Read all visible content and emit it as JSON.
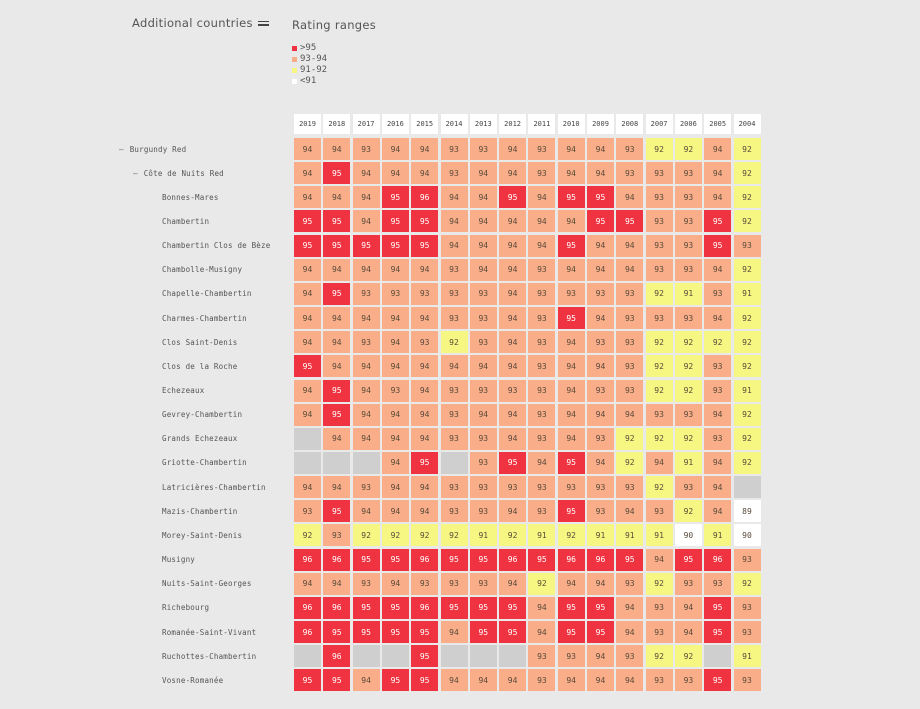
{
  "header": {
    "additional_countries": "Additional countries",
    "rating_ranges_title": "Rating ranges"
  },
  "legend": [
    {
      "label": ">95",
      "color": "#ef3340"
    },
    {
      "label": "93-94",
      "color": "#f9ae89"
    },
    {
      "label": "91-92",
      "color": "#f6f783"
    },
    {
      "label": "<91",
      "color": "#ffffff"
    }
  ],
  "chart_data": {
    "type": "heatmap",
    "columns": [
      "2019",
      "2018",
      "2017",
      "2016",
      "2015",
      "2014",
      "2013",
      "2012",
      "2011",
      "2010",
      "2009",
      "2008",
      "2007",
      "2006",
      "2005",
      "2004"
    ],
    "rows": [
      {
        "label": "Burgundy Red",
        "level": 0,
        "values": [
          94,
          94,
          93,
          94,
          94,
          93,
          93,
          94,
          93,
          94,
          94,
          93,
          92,
          92,
          94,
          92
        ]
      },
      {
        "label": "Côte de Nuits Red",
        "level": 1,
        "values": [
          94,
          95,
          94,
          94,
          94,
          93,
          94,
          94,
          93,
          94,
          94,
          93,
          93,
          93,
          94,
          92
        ]
      },
      {
        "label": "Bonnes-Mares",
        "level": 2,
        "values": [
          94,
          94,
          94,
          95,
          96,
          94,
          94,
          95,
          94,
          95,
          95,
          94,
          93,
          93,
          94,
          92
        ]
      },
      {
        "label": "Chambertin",
        "level": 2,
        "values": [
          95,
          95,
          94,
          95,
          95,
          94,
          94,
          94,
          94,
          94,
          95,
          95,
          93,
          93,
          95,
          92
        ]
      },
      {
        "label": "Chambertin Clos de Bèze",
        "level": 2,
        "values": [
          95,
          95,
          95,
          95,
          95,
          94,
          94,
          94,
          94,
          95,
          94,
          94,
          93,
          93,
          95,
          93
        ]
      },
      {
        "label": "Chambolle-Musigny",
        "level": 2,
        "values": [
          94,
          94,
          94,
          94,
          94,
          93,
          94,
          94,
          93,
          94,
          94,
          94,
          93,
          93,
          94,
          92
        ]
      },
      {
        "label": "Chapelle-Chambertin",
        "level": 2,
        "values": [
          94,
          95,
          93,
          93,
          93,
          93,
          93,
          94,
          93,
          93,
          93,
          93,
          92,
          91,
          93,
          91
        ]
      },
      {
        "label": "Charmes-Chambertin",
        "level": 2,
        "values": [
          94,
          94,
          94,
          94,
          94,
          93,
          93,
          94,
          93,
          95,
          94,
          93,
          93,
          93,
          94,
          92
        ]
      },
      {
        "label": "Clos Saint-Denis",
        "level": 2,
        "values": [
          94,
          94,
          93,
          94,
          93,
          92,
          93,
          94,
          93,
          94,
          93,
          93,
          92,
          92,
          92,
          92
        ]
      },
      {
        "label": "Clos de la Roche",
        "level": 2,
        "values": [
          95,
          94,
          94,
          94,
          94,
          94,
          94,
          94,
          93,
          94,
          94,
          93,
          92,
          92,
          93,
          92
        ]
      },
      {
        "label": "Echezeaux",
        "level": 2,
        "values": [
          94,
          95,
          94,
          93,
          94,
          93,
          93,
          93,
          93,
          94,
          93,
          93,
          92,
          92,
          93,
          91
        ]
      },
      {
        "label": "Gevrey-Chambertin",
        "level": 2,
        "values": [
          94,
          95,
          94,
          94,
          94,
          93,
          94,
          94,
          93,
          94,
          94,
          94,
          93,
          93,
          94,
          92
        ]
      },
      {
        "label": "Grands Echezeaux",
        "level": 2,
        "values": [
          null,
          94,
          94,
          94,
          94,
          93,
          93,
          94,
          93,
          94,
          93,
          92,
          92,
          92,
          93,
          92
        ]
      },
      {
        "label": "Griotte-Chambertin",
        "level": 2,
        "values": [
          null,
          null,
          null,
          94,
          95,
          null,
          93,
          95,
          94,
          95,
          94,
          92,
          94,
          91,
          94,
          92
        ]
      },
      {
        "label": "Latricières-Chambertin",
        "level": 2,
        "values": [
          94,
          94,
          93,
          94,
          94,
          93,
          93,
          93,
          93,
          93,
          93,
          93,
          92,
          93,
          94,
          null
        ]
      },
      {
        "label": "Mazis-Chambertin",
        "level": 2,
        "values": [
          93,
          95,
          94,
          94,
          94,
          93,
          93,
          94,
          93,
          95,
          93,
          94,
          93,
          92,
          94,
          89
        ]
      },
      {
        "label": "Morey-Saint-Denis",
        "level": 2,
        "values": [
          92,
          93,
          92,
          92,
          92,
          92,
          91,
          92,
          91,
          92,
          91,
          91,
          91,
          90,
          91,
          90
        ]
      },
      {
        "label": "Musigny",
        "level": 2,
        "values": [
          96,
          96,
          95,
          95,
          96,
          95,
          95,
          96,
          95,
          96,
          96,
          95,
          94,
          95,
          96,
          93
        ]
      },
      {
        "label": "Nuits-Saint-Georges",
        "level": 2,
        "values": [
          94,
          94,
          93,
          94,
          93,
          93,
          93,
          94,
          92,
          94,
          94,
          93,
          92,
          93,
          93,
          92
        ]
      },
      {
        "label": "Richebourg",
        "level": 2,
        "values": [
          96,
          96,
          95,
          95,
          96,
          95,
          95,
          95,
          94,
          95,
          95,
          94,
          93,
          94,
          95,
          93
        ]
      },
      {
        "label": "Romanée-Saint-Vivant",
        "level": 2,
        "values": [
          96,
          95,
          95,
          95,
          95,
          94,
          95,
          95,
          94,
          95,
          95,
          94,
          93,
          94,
          95,
          93
        ]
      },
      {
        "label": "Ruchottes-Chambertin",
        "level": 2,
        "values": [
          null,
          96,
          null,
          null,
          95,
          null,
          null,
          null,
          93,
          93,
          94,
          93,
          92,
          92,
          null,
          91
        ]
      },
      {
        "label": "Vosne-Romanée",
        "level": 2,
        "values": [
          95,
          95,
          94,
          95,
          95,
          94,
          94,
          94,
          93,
          94,
          94,
          94,
          93,
          93,
          95,
          93
        ]
      }
    ]
  }
}
